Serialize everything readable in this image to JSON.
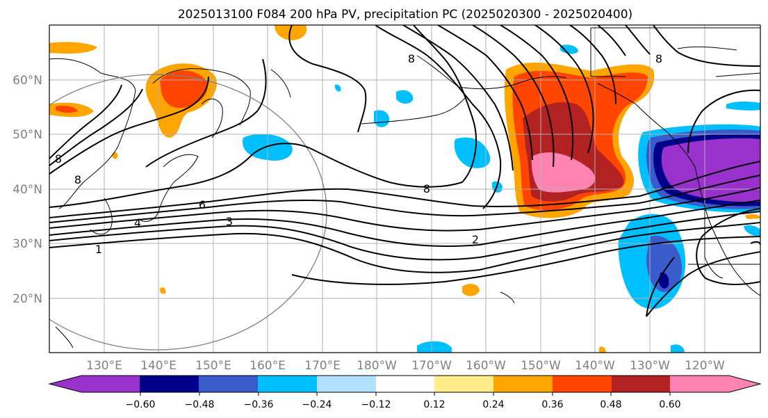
{
  "title": "2025013100 F084 200 hPa PV, precipitation PC (2025020300 - 2025020400)",
  "lon_ticks": [
    "130°E",
    "140°E",
    "150°E",
    "160°E",
    "170°E",
    "180°W",
    "170°W",
    "160°W",
    "150°W",
    "140°W",
    "130°W",
    "120°W"
  ],
  "lat_ticks": [
    "60°N",
    "50°N",
    "40°N",
    "30°N",
    "20°N"
  ],
  "contour_labels": [
    "8",
    "8",
    "6",
    "3",
    "4",
    "1",
    "8",
    "2",
    "8",
    "8"
  ],
  "colorbar": {
    "labels": [
      "−0.60",
      "−0.48",
      "−0.36",
      "−0.24",
      "−0.12",
      "0.12",
      "0.24",
      "0.36",
      "0.48",
      "0.60"
    ],
    "colors": [
      "#9932cc",
      "#00008b",
      "#3a5bcb",
      "#00bfff",
      "#b0e2ff",
      "#ffffff",
      "#ffec8b",
      "#ffa500",
      "#ff4500",
      "#b22222",
      "#ff83b0"
    ]
  }
}
